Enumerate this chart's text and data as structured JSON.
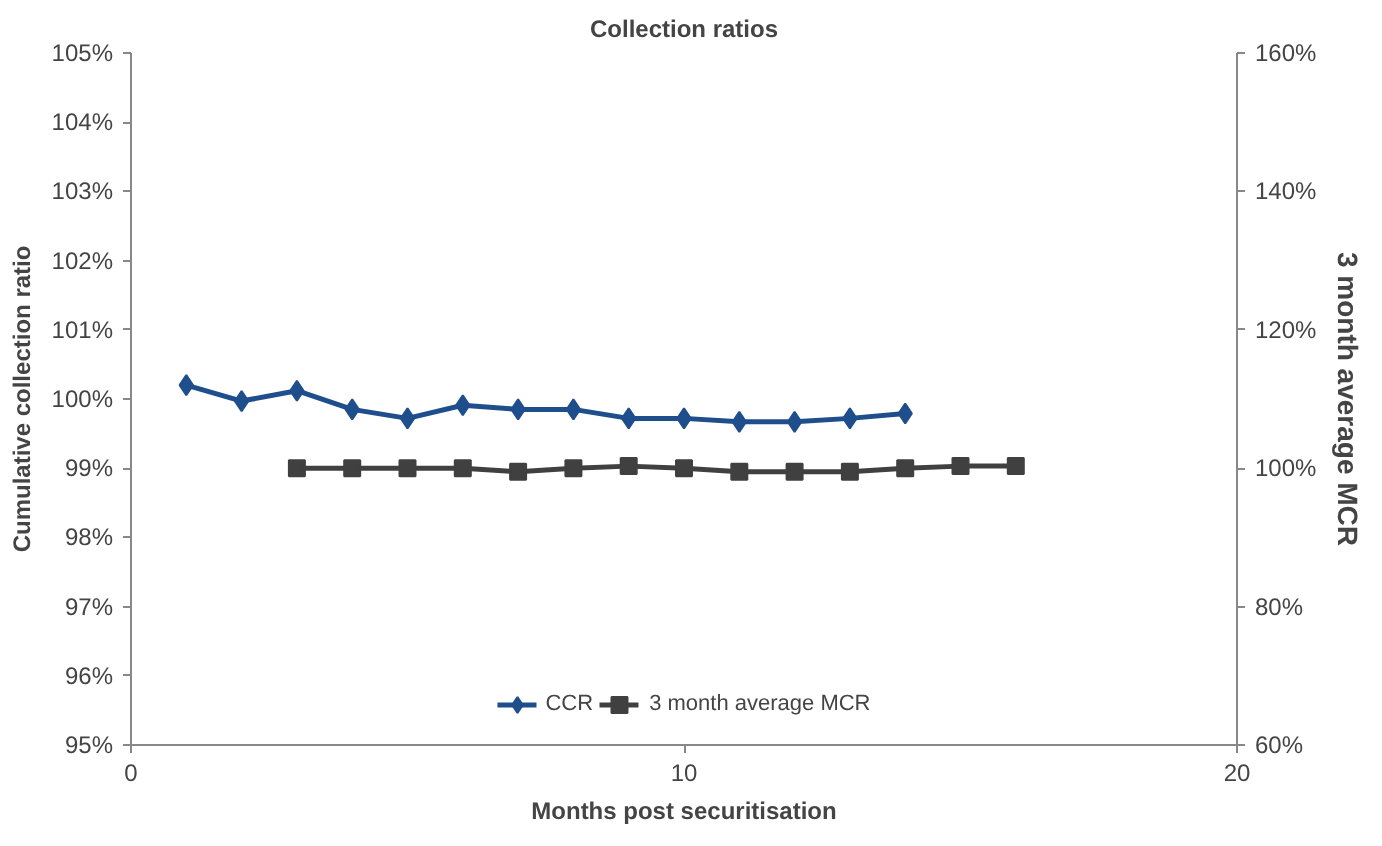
{
  "chart_data": {
    "type": "line",
    "title": "Collection ratios",
    "xlabel": "Months post securitisation",
    "ylabel": "Cumulative collection ratio",
    "y2label": "3 month average MCR",
    "xlim": [
      0,
      20
    ],
    "xticks": [
      0,
      10,
      20
    ],
    "ylim": [
      95,
      105
    ],
    "yticks": [
      {
        "value": 95,
        "label": "95%"
      },
      {
        "value": 96,
        "label": "96%"
      },
      {
        "value": 97,
        "label": "97%"
      },
      {
        "value": 98,
        "label": "98%"
      },
      {
        "value": 99,
        "label": "99%"
      },
      {
        "value": 100,
        "label": "100%"
      },
      {
        "value": 101,
        "label": "101%"
      },
      {
        "value": 102,
        "label": "102%"
      },
      {
        "value": 103,
        "label": "103%"
      },
      {
        "value": 104,
        "label": "104%"
      },
      {
        "value": 105,
        "label": "105%"
      }
    ],
    "y2lim": [
      60,
      160
    ],
    "y2ticks": [
      {
        "value": 60,
        "label": "60%"
      },
      {
        "value": 80,
        "label": "80%"
      },
      {
        "value": 100,
        "label": "100%"
      },
      {
        "value": 120,
        "label": "120%"
      },
      {
        "value": 140,
        "label": "140%"
      },
      {
        "value": 160,
        "label": "160%"
      }
    ],
    "grid": false,
    "legend": "bottom",
    "series": [
      {
        "name": "CCR",
        "color": "#1f4e8c",
        "marker": "diamond",
        "x": [
          1,
          2,
          3,
          4,
          5,
          6,
          7,
          8,
          9,
          10,
          11,
          12,
          13,
          14
        ],
        "values": [
          100.2,
          99.97,
          100.12,
          99.85,
          99.72,
          99.91,
          99.85,
          99.85,
          99.72,
          99.72,
          99.67,
          99.67,
          99.72,
          99.79
        ]
      },
      {
        "name": "3 month average MCR",
        "color": "#404040",
        "marker": "square",
        "axis": "y2",
        "x": [
          3,
          4,
          5,
          6,
          7,
          8,
          9,
          10,
          11,
          12,
          13,
          14,
          15,
          16
        ],
        "values": [
          100,
          100,
          100,
          100,
          99.5,
          100,
          100.3,
          100,
          99.5,
          99.5,
          99.5,
          100,
          100.3,
          100.3
        ]
      }
    ]
  }
}
